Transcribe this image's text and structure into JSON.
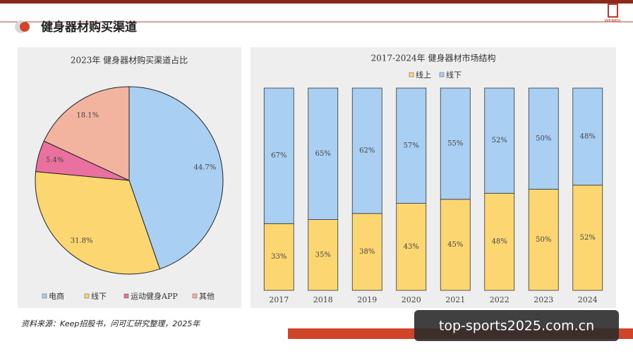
{
  "header": {
    "title": "健身器材购买渠道",
    "logo": "WENKH"
  },
  "chart_data": [
    {
      "type": "pie",
      "title": "2023年 健身器材购买渠道占比",
      "categories": [
        "电商",
        "线下",
        "运动健身APP",
        "其他"
      ],
      "values": [
        44.7,
        31.8,
        5.4,
        18.1
      ],
      "value_labels": [
        "44.7%",
        "31.8%",
        "5.4%",
        "18.1%"
      ],
      "colors": [
        "#a9d0f2",
        "#fcd771",
        "#e9709f",
        "#f3b49f"
      ]
    },
    {
      "type": "stacked-bar",
      "title": "2017-2024年 健身器材市场结构",
      "categories": [
        "2017",
        "2018",
        "2019",
        "2020",
        "2021",
        "2022",
        "2023",
        "2024"
      ],
      "series": [
        {
          "name": "线上",
          "color": "#fcd771",
          "values": [
            33,
            35,
            38,
            43,
            45,
            48,
            50,
            52
          ],
          "value_labels": [
            "33%",
            "35%",
            "38%",
            "43%",
            "45%",
            "48%",
            "50%",
            "52%"
          ]
        },
        {
          "name": "线下",
          "color": "#a9d0f2",
          "values": [
            67,
            65,
            62,
            57,
            55,
            52,
            50,
            48
          ],
          "value_labels": [
            "67%",
            "65%",
            "62%",
            "57%",
            "55%",
            "52%",
            "50%",
            "48%"
          ]
        }
      ]
    }
  ],
  "source": "资料来源：Keep招股书，问可汇研究整理，2025年",
  "watermark": "top-sports2025.com.cn"
}
